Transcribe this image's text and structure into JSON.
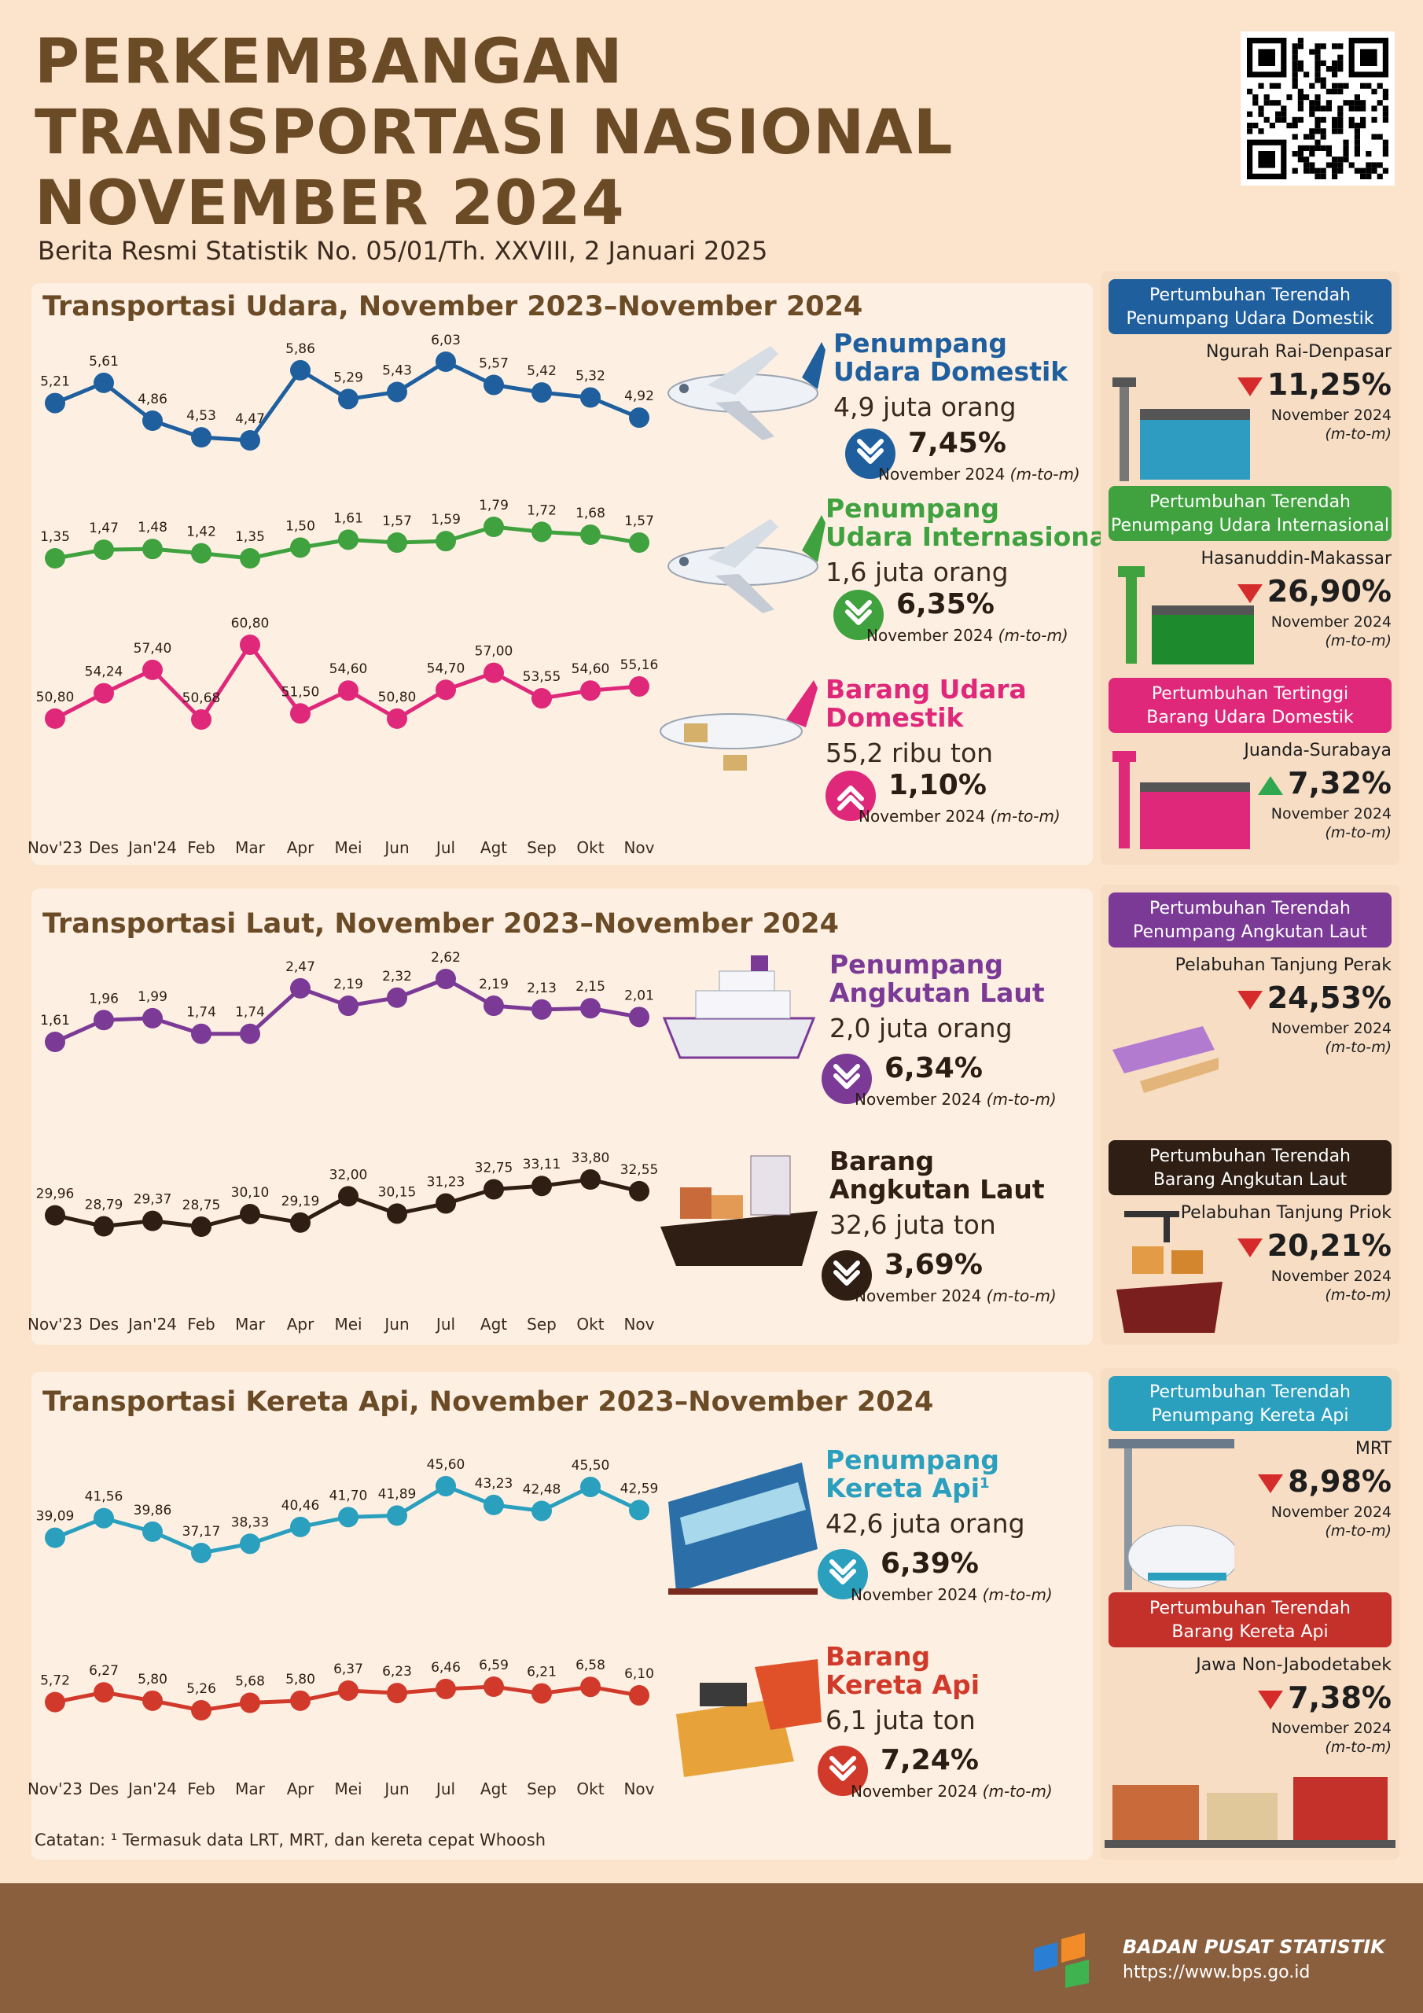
{
  "header": {
    "title_line1": "PERKEMBANGAN",
    "title_line2": "TRANSPORTASI NASIONAL",
    "title_line3": "NOVEMBER 2024",
    "subtitle": "Berita Resmi Statistik No. 05/01/Th. XXVIII, 2 Januari 2025"
  },
  "months": [
    "Nov'23",
    "Des",
    "Jan'24",
    "Feb",
    "Mar",
    "Apr",
    "Mei",
    "Jun",
    "Jul",
    "Agt",
    "Sep",
    "Okt",
    "Nov"
  ],
  "sections": {
    "udara": {
      "title": "Transportasi Udara, November 2023–November 2024"
    },
    "laut": {
      "title": "Transportasi Laut, November 2023–November 2024"
    },
    "kereta": {
      "title": "Transportasi Kereta Api, November 2023–November 2024"
    }
  },
  "chart_data": [
    {
      "type": "line",
      "name": "Penumpang Udara Domestik",
      "color": "#1f5f9e",
      "ylim": [
        4.2,
        6.3
      ],
      "values": [
        5.21,
        5.61,
        4.86,
        4.53,
        4.47,
        5.86,
        5.29,
        5.43,
        6.03,
        5.57,
        5.42,
        5.32,
        4.92
      ],
      "labels": [
        "5,21",
        "5,61",
        "4,86",
        "4,53",
        "4,47",
        "5,86",
        "5,29",
        "5,43",
        "6,03",
        "5,57",
        "5,42",
        "5,32",
        "4,92"
      ]
    },
    {
      "type": "line",
      "name": "Penumpang Udara Internasional",
      "color": "#3fa23f",
      "ylim": [
        1.2,
        2.1
      ],
      "values": [
        1.35,
        1.47,
        1.48,
        1.42,
        1.35,
        1.5,
        1.61,
        1.57,
        1.59,
        1.79,
        1.72,
        1.68,
        1.57
      ],
      "labels": [
        "1,35",
        "1,47",
        "1,48",
        "1,42",
        "1,35",
        "1,50",
        "1,61",
        "1,57",
        "1,59",
        "1,79",
        "1,72",
        "1,68",
        "1,57"
      ]
    },
    {
      "type": "line",
      "name": "Barang Udara Domestik",
      "color": "#e0287a",
      "ylim": [
        49,
        63
      ],
      "values": [
        50.8,
        54.24,
        57.4,
        50.68,
        60.8,
        51.5,
        54.6,
        50.8,
        54.7,
        57.0,
        53.55,
        54.6,
        55.16
      ],
      "labels": [
        "50,80",
        "54,24",
        "57,40",
        "50,68",
        "60,80",
        "51,50",
        "54,60",
        "50,80",
        "54,70",
        "57,00",
        "53,55",
        "54,60",
        "55,16"
      ]
    },
    {
      "type": "line",
      "name": "Penumpang Angkutan Laut",
      "color": "#7b3a96",
      "ylim": [
        1.5,
        2.7
      ],
      "values": [
        1.61,
        1.96,
        1.99,
        1.74,
        1.74,
        2.47,
        2.19,
        2.32,
        2.62,
        2.19,
        2.13,
        2.15,
        2.01
      ],
      "labels": [
        "1,61",
        "1,96",
        "1,99",
        "1,74",
        "1,74",
        "2,47",
        "2,19",
        "2,32",
        "2,62",
        "2,19",
        "2,13",
        "2,15",
        "2,01"
      ]
    },
    {
      "type": "line",
      "name": "Barang Angkutan Laut",
      "color": "#2e1e14",
      "ylim": [
        27,
        36
      ],
      "values": [
        29.96,
        28.79,
        29.37,
        28.75,
        30.1,
        29.19,
        32.0,
        30.15,
        31.23,
        32.75,
        33.11,
        33.8,
        32.55
      ],
      "labels": [
        "29,96",
        "28,79",
        "29,37",
        "28,75",
        "30,10",
        "29,19",
        "32,00",
        "30,15",
        "31,23",
        "32,75",
        "33,11",
        "33,80",
        "32,55"
      ]
    },
    {
      "type": "line",
      "name": "Penumpang Kereta Api",
      "color": "#2a9fbe",
      "ylim": [
        35,
        48
      ],
      "values": [
        39.09,
        41.56,
        39.86,
        37.17,
        38.33,
        40.46,
        41.7,
        41.89,
        45.6,
        43.23,
        42.48,
        45.5,
        42.59
      ],
      "labels": [
        "39,09",
        "41,56",
        "39,86",
        "37,17",
        "38,33",
        "40,46",
        "41,70",
        "41,89",
        "45,60",
        "43,23",
        "42,48",
        "45,50",
        "42,59"
      ]
    },
    {
      "type": "line",
      "name": "Barang Kereta Api",
      "color": "#d13a2a",
      "ylim": [
        4.5,
        8.5
      ],
      "values": [
        5.72,
        6.27,
        5.8,
        5.26,
        5.68,
        5.8,
        6.37,
        6.23,
        6.46,
        6.59,
        6.21,
        6.58,
        6.1
      ],
      "labels": [
        "5,72",
        "6,27",
        "5,80",
        "5,26",
        "5,68",
        "5,80",
        "6,37",
        "6,23",
        "6,46",
        "6,59",
        "6,21",
        "6,58",
        "6,10"
      ]
    }
  ],
  "info": {
    "udara_dom": {
      "name1": "Penumpang",
      "name2": "Udara Domestik",
      "qty": "4,9 juta orang",
      "pct": "7,45%",
      "note": "November 2024",
      "note2": "(m-to-m)",
      "dir": "down"
    },
    "udara_int": {
      "name1": "Penumpang",
      "name2": "Udara Internasional",
      "qty": "1,6 juta orang",
      "pct": "6,35%",
      "note": "November 2024",
      "note2": "(m-to-m)",
      "dir": "down"
    },
    "barang_udara": {
      "name1": "Barang Udara",
      "name2": "Domestik",
      "qty": "55,2 ribu ton",
      "pct": "1,10%",
      "note": "November 2024",
      "note2": "(m-to-m)",
      "dir": "up"
    },
    "laut_pnp": {
      "name1": "Penumpang",
      "name2": "Angkutan Laut",
      "qty": "2,0 juta orang",
      "pct": "6,34%",
      "note": "November 2024",
      "note2": "(m-to-m)",
      "dir": "down"
    },
    "laut_brg": {
      "name1": "Barang",
      "name2": "Angkutan Laut",
      "qty": "32,6 juta ton",
      "pct": "3,69%",
      "note": "November 2024",
      "note2": "(m-to-m)",
      "dir": "down"
    },
    "ka_pnp": {
      "name1": "Penumpang",
      "name2": "Kereta Api",
      "sup": "1",
      "qty": "42,6 juta orang",
      "pct": "6,39%",
      "note": "November 2024",
      "note2": "(m-to-m)",
      "dir": "down"
    },
    "ka_brg": {
      "name1": "Barang",
      "name2": "Kereta Api",
      "qty": "6,1 juta ton",
      "pct": "7,24%",
      "note": "November 2024",
      "note2": "(m-to-m)",
      "dir": "down"
    }
  },
  "side": {
    "s1": {
      "head1": "Pertumbuhan Terendah",
      "head2": "Penumpang Udara Domestik",
      "loc": "Ngurah Rai-Denpasar",
      "pct": "11,25%",
      "note": "November 2024",
      "note2": "(m-to-m)"
    },
    "s2": {
      "head1": "Pertumbuhan Terendah",
      "head2": "Penumpang Udara Internasional",
      "loc": "Hasanuddin-Makassar",
      "pct": "26,90%",
      "note": "November 2024",
      "note2": "(m-to-m)"
    },
    "s3": {
      "head1": "Pertumbuhan Tertinggi",
      "head2": "Barang Udara Domestik",
      "loc": "Juanda-Surabaya",
      "pct": "7,32%",
      "note": "November 2024",
      "note2": "(m-to-m)"
    },
    "s4": {
      "head1": "Pertumbuhan Terendah",
      "head2": "Penumpang Angkutan Laut",
      "loc": "Pelabuhan Tanjung Perak",
      "pct": "24,53%",
      "note": "November 2024",
      "note2": "(m-to-m)"
    },
    "s5": {
      "head1": "Pertumbuhan Terendah",
      "head2": "Barang Angkutan Laut",
      "loc": "Pelabuhan Tanjung Priok",
      "pct": "20,21%",
      "note": "November 2024",
      "note2": "(m-to-m)"
    },
    "s6": {
      "head1": "Pertumbuhan Terendah",
      "head2": "Penumpang Kereta Api",
      "loc": "MRT",
      "pct": "8,98%",
      "note": "November 2024",
      "note2": "(m-to-m)"
    },
    "s7": {
      "head1": "Pertumbuhan Terendah",
      "head2": "Barang Kereta Api",
      "loc": "Jawa Non-Jabodetabek",
      "pct": "7,38%",
      "note": "November 2024",
      "note2": "(m-to-m)"
    }
  },
  "note": "Catatan: ¹ Termasuk data LRT, MRT, dan kereta cepat Whoosh",
  "footer": {
    "org": "BADAN PUSAT STATISTIK",
    "url": "https://www.bps.go.id"
  }
}
